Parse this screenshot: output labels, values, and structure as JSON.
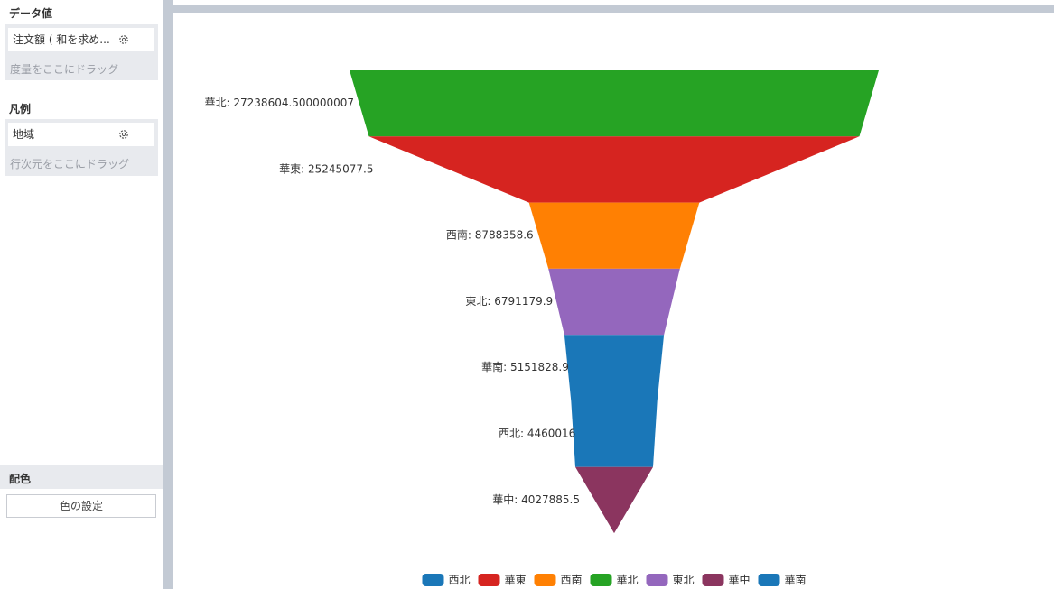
{
  "panel": {
    "data_values": {
      "title": "データ値",
      "field_label": "注文額 ( 和を求め...",
      "drop_hint": "度量をここにドラッグ"
    },
    "legend_section": {
      "title": "凡例",
      "field_label": "地域",
      "drop_hint": "行次元をここにドラッグ"
    },
    "color": {
      "title": "配色",
      "button_label": "色の設定"
    }
  },
  "chart_data": {
    "type": "funnel",
    "title": "",
    "series": [
      {
        "name": "華北",
        "value": 27238604.500000007,
        "label": "華北: 27238604.500000007",
        "color": "#26a324"
      },
      {
        "name": "華東",
        "value": 25245077.5,
        "label": "華東: 25245077.5",
        "color": "#d62420"
      },
      {
        "name": "西南",
        "value": 8788358.6,
        "label": "西南: 8788358.6",
        "color": "#ff8003"
      },
      {
        "name": "東北",
        "value": 6791179.9,
        "label": "東北: 6791179.9",
        "color": "#9467bd"
      },
      {
        "name": "華南",
        "value": 5151828.9,
        "label": "華南: 5151828.9",
        "color": "#1a77b8"
      },
      {
        "name": "西北",
        "value": 4460016,
        "label": "西北: 4460016",
        "color": "#1a77b8"
      },
      {
        "name": "華中",
        "value": 4027885.5,
        "label": "華中: 4027885.5",
        "color": "#8b355f"
      }
    ],
    "legend": {
      "position": "bottom",
      "items": [
        {
          "name": "西北",
          "color": "#1a77b8"
        },
        {
          "name": "華東",
          "color": "#d62420"
        },
        {
          "name": "西南",
          "color": "#ff8003"
        },
        {
          "name": "華北",
          "color": "#26a324"
        },
        {
          "name": "東北",
          "color": "#9467bd"
        },
        {
          "name": "華中",
          "color": "#8b355f"
        },
        {
          "name": "華南",
          "color": "#1a77b8"
        }
      ]
    }
  }
}
